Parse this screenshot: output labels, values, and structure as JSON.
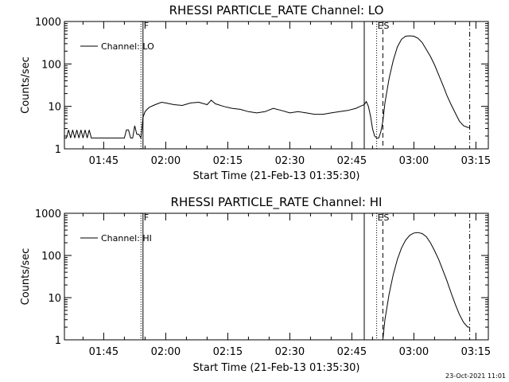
{
  "chart_data": [
    {
      "type": "line",
      "title": "RHESSI PARTICLE_RATE Channel: LO",
      "xlabel": "Start Time (21-Feb-13 01:35:30)",
      "ylabel": "Counts/sec",
      "y_scale": "log",
      "ylim": [
        1,
        1000
      ],
      "xlim": [
        "01:35:30",
        "03:18:00"
      ],
      "x_ticks": [
        "01:45",
        "02:00",
        "02:15",
        "02:30",
        "02:45",
        "03:00",
        "03:15"
      ],
      "y_ticks": [
        "1",
        "10",
        "100",
        "1000"
      ],
      "legend": {
        "placement": "top-left",
        "entries": [
          "Channel: LO"
        ]
      },
      "markers": [
        {
          "label": "F",
          "time": "01:54:30",
          "style": "solid"
        },
        {
          "label": "",
          "time": "01:54:00",
          "style": "dotted"
        },
        {
          "label": "",
          "time": "02:48:00",
          "style": "solid"
        },
        {
          "label": "E",
          "time": "02:51:00",
          "style": "dotted"
        },
        {
          "label": "S",
          "time": "02:52:30",
          "style": "dashed"
        },
        {
          "label": "",
          "time": "03:13:30",
          "style": "dashdot"
        }
      ],
      "series": [
        {
          "name": "Channel: LO",
          "x": [
            "01:35:30",
            "01:36:00",
            "01:36:30",
            "01:37:00",
            "01:37:30",
            "01:38:00",
            "01:38:30",
            "01:39:00",
            "01:39:30",
            "01:40:00",
            "01:40:30",
            "01:41:00",
            "01:41:30",
            "01:42:00",
            "01:43:00",
            "01:44:00",
            "01:45:00",
            "01:46:00",
            "01:47:00",
            "01:48:00",
            "01:49:00",
            "01:50:00",
            "01:50:30",
            "01:51:00",
            "01:51:30",
            "01:52:00",
            "01:52:30",
            "01:53:00",
            "01:53:30",
            "01:54:00",
            "01:54:30",
            "01:55:00",
            "01:55:30",
            "01:56:00",
            "01:57:00",
            "01:58:00",
            "01:59:00",
            "02:00:00",
            "02:02:00",
            "02:04:00",
            "02:06:00",
            "02:08:00",
            "02:10:00",
            "02:11:00",
            "02:12:00",
            "02:14:00",
            "02:16:00",
            "02:18:00",
            "02:20:00",
            "02:22:00",
            "02:24:00",
            "02:26:00",
            "02:28:00",
            "02:30:00",
            "02:32:00",
            "02:34:00",
            "02:36:00",
            "02:38:00",
            "02:40:00",
            "02:42:00",
            "02:44:00",
            "02:46:00",
            "02:47:00",
            "02:48:00",
            "02:48:30",
            "02:49:00",
            "02:49:30",
            "02:50:00",
            "02:50:30",
            "02:51:00",
            "02:51:30",
            "02:52:00",
            "02:52:30",
            "02:53:00",
            "02:54:00",
            "02:55:00",
            "02:56:00",
            "02:57:00",
            "02:58:00",
            "02:59:00",
            "03:00:00",
            "03:01:00",
            "03:02:00",
            "03:03:00",
            "03:04:00",
            "03:05:00",
            "03:06:00",
            "03:07:00",
            "03:08:00",
            "03:09:00",
            "03:10:00",
            "03:11:00",
            "03:12:00",
            "03:13:00",
            "03:13:30"
          ],
          "values": [
            1.8,
            1.8,
            2.8,
            1.8,
            2.8,
            1.8,
            2.8,
            1.8,
            2.8,
            1.8,
            2.8,
            1.8,
            2.8,
            1.8,
            1.8,
            1.8,
            1.8,
            1.8,
            1.8,
            1.8,
            1.8,
            1.8,
            2.8,
            2.8,
            1.8,
            1.8,
            3.5,
            2.2,
            2.2,
            1.8,
            5.5,
            7.5,
            8.5,
            9.5,
            10.5,
            11.5,
            12.5,
            12,
            11,
            10.5,
            12,
            12.5,
            11,
            14,
            11.5,
            10,
            9,
            8.5,
            7.5,
            7,
            7.5,
            9,
            8,
            7,
            7.5,
            7,
            6.5,
            6.5,
            7,
            7.5,
            8,
            9,
            10,
            11,
            13,
            10,
            6,
            3,
            2,
            1.8,
            1.8,
            2.5,
            4.5,
            12,
            45,
            120,
            250,
            380,
            450,
            460,
            450,
            400,
            320,
            220,
            150,
            95,
            55,
            32,
            18,
            11,
            7,
            4.5,
            3.5,
            3.2,
            3.2
          ]
        }
      ]
    },
    {
      "type": "line",
      "title": "RHESSI PARTICLE_RATE Channel: HI",
      "xlabel": "Start Time (21-Feb-13 01:35:30)",
      "ylabel": "Counts/sec",
      "y_scale": "log",
      "ylim": [
        1,
        1000
      ],
      "xlim": [
        "01:35:30",
        "03:18:00"
      ],
      "x_ticks": [
        "01:45",
        "02:00",
        "02:15",
        "02:30",
        "02:45",
        "03:00",
        "03:15"
      ],
      "y_ticks": [
        "1",
        "10",
        "100",
        "1000"
      ],
      "legend": {
        "placement": "top-left",
        "entries": [
          "Channel: HI"
        ]
      },
      "markers": [
        {
          "label": "F",
          "time": "01:54:30",
          "style": "solid"
        },
        {
          "label": "",
          "time": "01:54:00",
          "style": "dotted"
        },
        {
          "label": "",
          "time": "02:48:00",
          "style": "solid"
        },
        {
          "label": "E",
          "time": "02:51:00",
          "style": "dotted"
        },
        {
          "label": "S",
          "time": "02:52:30",
          "style": "dashed"
        },
        {
          "label": "",
          "time": "03:13:30",
          "style": "dashdot"
        }
      ],
      "series": [
        {
          "name": "Channel: HI",
          "x": [
            "02:52:30",
            "02:53:00",
            "02:54:00",
            "02:55:00",
            "02:56:00",
            "02:57:00",
            "02:58:00",
            "02:59:00",
            "03:00:00",
            "03:01:00",
            "03:02:00",
            "03:03:00",
            "03:04:00",
            "03:05:00",
            "03:06:00",
            "03:07:00",
            "03:08:00",
            "03:09:00",
            "03:10:00",
            "03:11:00",
            "03:12:00",
            "03:13:00",
            "03:13:30"
          ],
          "values": [
            1.0,
            3,
            12,
            35,
            80,
            150,
            230,
            300,
            340,
            350,
            330,
            280,
            200,
            130,
            80,
            45,
            25,
            13,
            7,
            4,
            2.6,
            2.0,
            2.0
          ]
        }
      ]
    }
  ],
  "footer": {
    "date_stamp": "23-Oct-2021 11:01"
  }
}
